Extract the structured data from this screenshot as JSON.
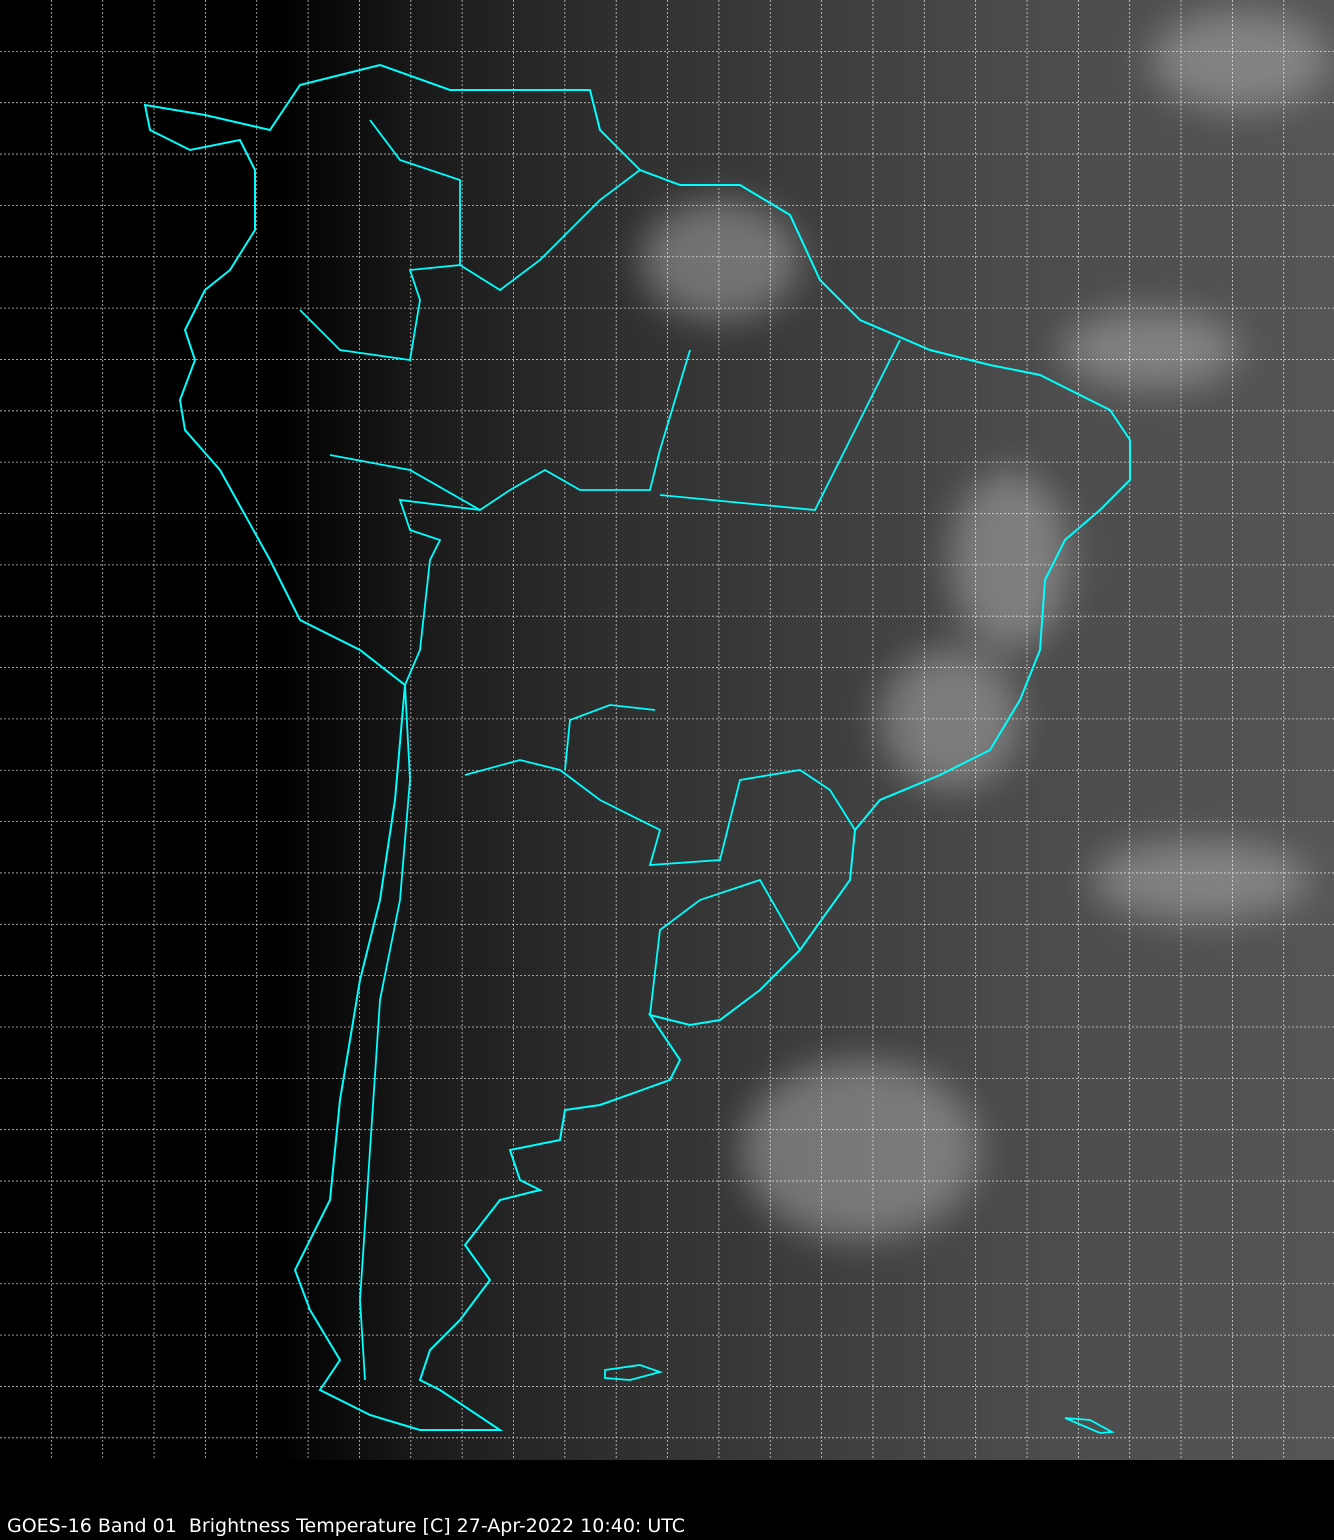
{
  "caption": "GOES-16 Band 01  Brightness Temperature [C] 27-Apr-2022 10:40: UTC",
  "colors": {
    "boundaries": "#00ffff",
    "grid": "#ffffff",
    "background": "#000000"
  },
  "grid": {
    "style": "dashed",
    "visible": true
  }
}
